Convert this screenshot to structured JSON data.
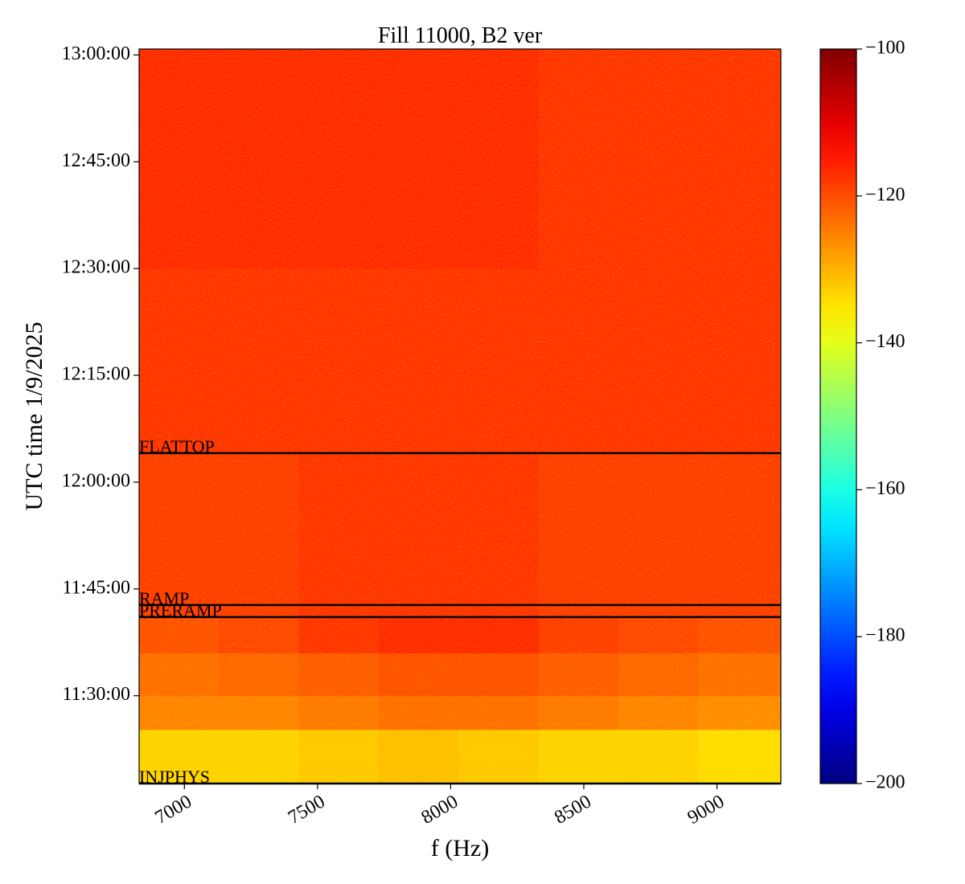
{
  "chart_data": {
    "type": "heatmap",
    "title": "Fill 11000, B2 ver",
    "xlabel": "f (Hz)",
    "ylabel": "UTC time 1/9/2025",
    "colormap": "jet",
    "x_edges": [
      6830,
      7130,
      7430,
      7730,
      8030,
      8330,
      8630,
      8930,
      9240
    ],
    "y_edges": [
      "11:17:40",
      "11:25:15",
      "11:30:00",
      "11:36:00",
      "11:41:00",
      "12:04:00",
      "12:30:00",
      "13:00:50"
    ],
    "z": [
      [
        -133,
        -133,
        -132,
        -131,
        -132,
        -133,
        -133,
        -134
      ],
      [
        -125,
        -125,
        -124,
        -123,
        -123,
        -124,
        -125,
        -126
      ],
      [
        -123,
        -122,
        -121,
        -120,
        -120,
        -121,
        -122,
        -123
      ],
      [
        -120,
        -119,
        -117,
        -116,
        -116,
        -118,
        -119,
        -120
      ],
      [
        -118,
        -118,
        -117,
        -117,
        -117,
        -118,
        -118,
        -118
      ],
      [
        -117,
        -117,
        -117,
        -117,
        -117,
        -117,
        -117,
        -117
      ],
      [
        -116,
        -116,
        -116,
        -116,
        -116,
        -117,
        -117,
        -117
      ]
    ],
    "xlim": [
      6830,
      9240
    ],
    "xticks": [
      7000,
      7500,
      8000,
      8500,
      9000
    ],
    "ylim": [
      "11:17:40",
      "13:00:50"
    ],
    "yticks": [
      "11:30:00",
      "11:45:00",
      "12:00:00",
      "12:15:00",
      "12:30:00",
      "12:45:00",
      "13:00:00"
    ],
    "zlim": [
      -200,
      -100
    ],
    "zticks": [
      {
        "value": -100,
        "label": "−100"
      },
      {
        "value": -120,
        "label": "−120"
      },
      {
        "value": -140,
        "label": "−140"
      },
      {
        "value": -160,
        "label": "−160"
      },
      {
        "value": -180,
        "label": "−180"
      },
      {
        "value": -200,
        "label": "−200"
      }
    ],
    "events": [
      {
        "label": "FLATTOP",
        "time": "12:04:04"
      },
      {
        "label": "RAMP",
        "time": "11:42:44"
      },
      {
        "label": "PRERAMP",
        "time": "11:41:03"
      },
      {
        "label": "INJPHYS",
        "time": "11:17:40"
      }
    ]
  }
}
